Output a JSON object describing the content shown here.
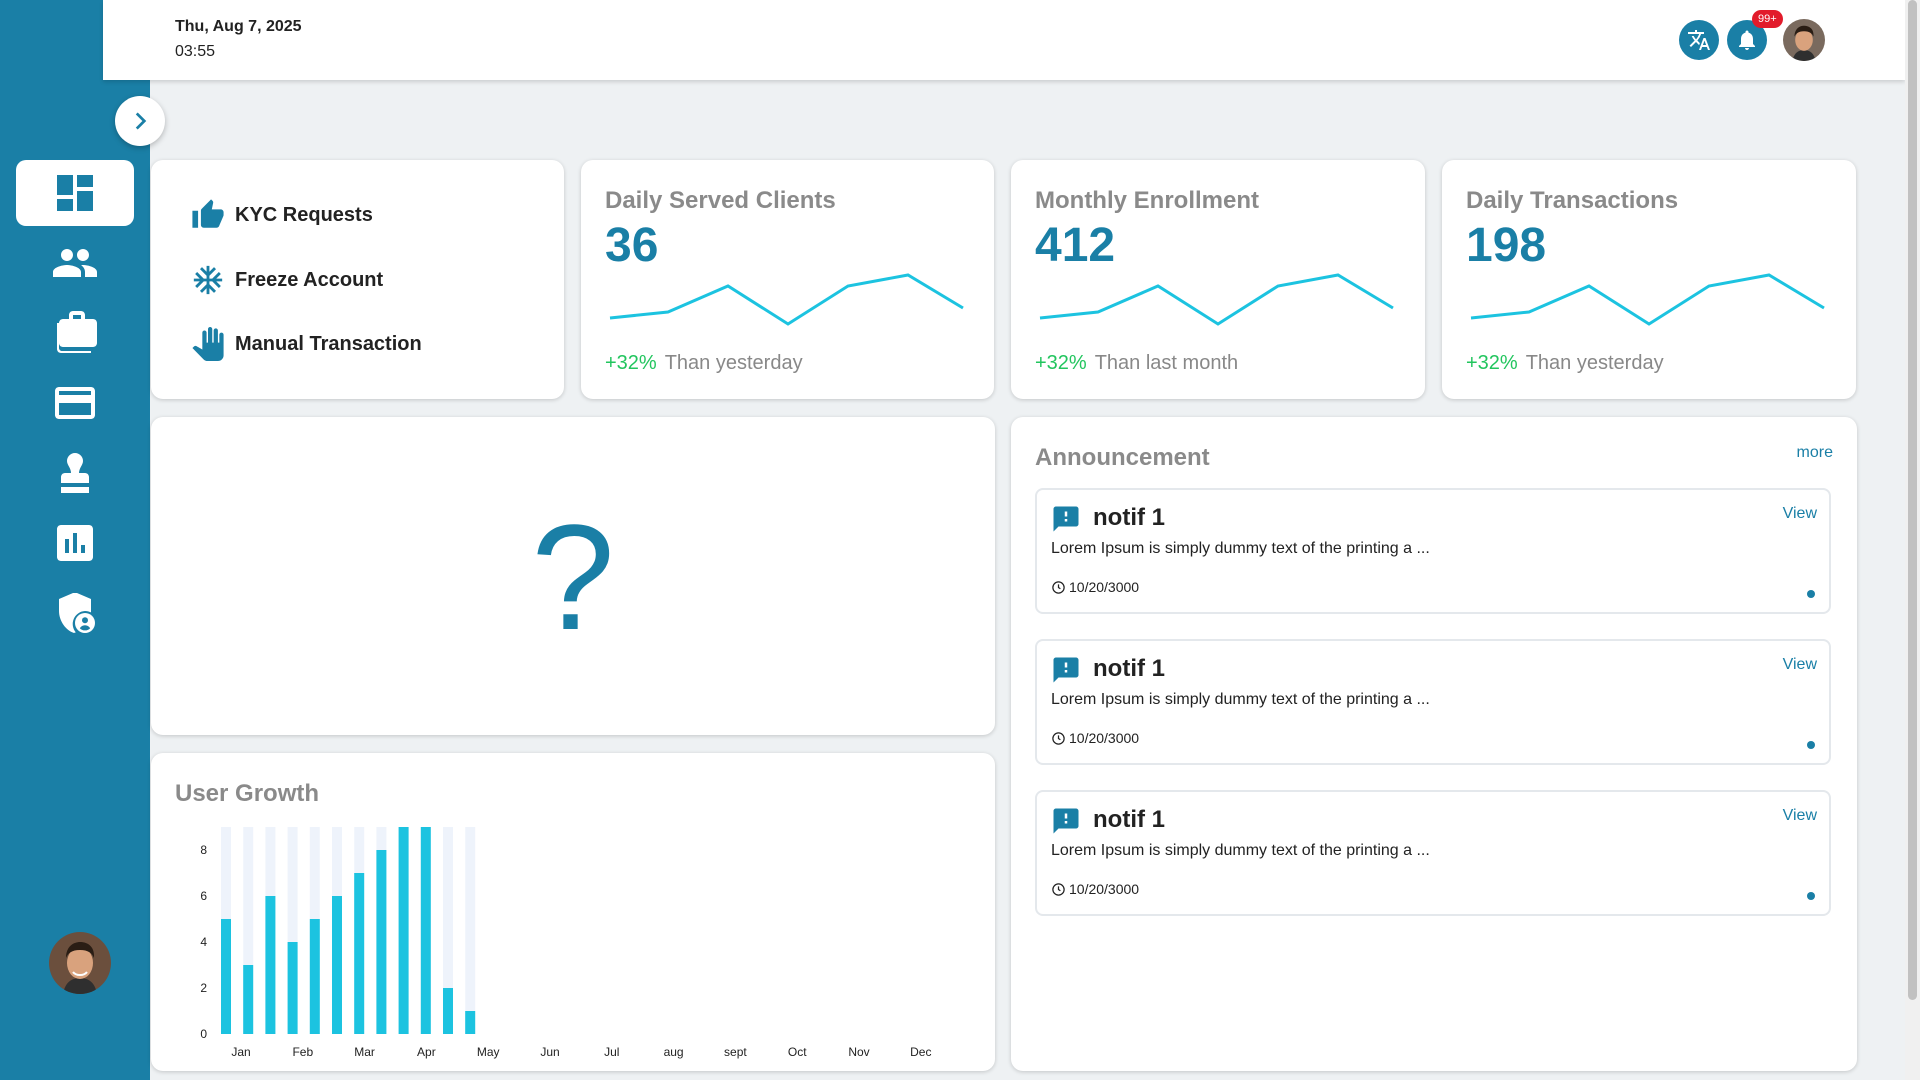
{
  "header": {
    "date": "Thu, Aug 7, 2025",
    "time": "03:55",
    "notification_badge": "99+",
    "icons": [
      "translate-icon",
      "bell-icon",
      "user-avatar"
    ]
  },
  "sidebar": {
    "items": [
      {
        "icon": "dashboard-icon",
        "active": true
      },
      {
        "icon": "users-icon",
        "active": false
      },
      {
        "icon": "briefcase-icon",
        "active": false
      },
      {
        "icon": "credit-card-icon",
        "active": false
      },
      {
        "icon": "stamp-icon",
        "active": false
      },
      {
        "icon": "bar-chart-icon",
        "active": false
      },
      {
        "icon": "admin-shield-icon",
        "active": false
      }
    ]
  },
  "quick_actions": [
    {
      "label": "KYC Requests",
      "icon": "thumbs-up-icon"
    },
    {
      "label": "Freeze Account",
      "icon": "snowflake-icon"
    },
    {
      "label": "Manual Transaction",
      "icon": "hand-icon"
    }
  ],
  "stats": [
    {
      "title": "Daily Served Clients",
      "value": "36",
      "change": "+32%",
      "caption": "Than yesterday"
    },
    {
      "title": "Monthly Enrollment",
      "value": "412",
      "change": "+32%",
      "caption": "Than last month"
    },
    {
      "title": "Daily Transactions",
      "value": "198",
      "change": "+32%",
      "caption": "Than yesterday"
    }
  ],
  "placeholder": {
    "symbol": "?"
  },
  "user_growth": {
    "title": "User Growth"
  },
  "chart_data": {
    "type": "bar",
    "title": "User Growth",
    "categories": [
      "Jan",
      "Feb",
      "Mar",
      "Apr",
      "May",
      "Jun",
      "Jul",
      "aug",
      "sept",
      "Oct",
      "Nov",
      "Dec"
    ],
    "series": [
      {
        "values": [
          5,
          3,
          6,
          4,
          5,
          6,
          7,
          8,
          9,
          9,
          2,
          1
        ]
      }
    ],
    "x_tick_labels": [
      "Jan",
      "Feb",
      "Mar",
      "Apr",
      "May",
      "Jun",
      "Jul",
      "aug",
      "sept",
      "Oct",
      "Nov",
      "Dec"
    ],
    "y_ticks": [
      0,
      2,
      4,
      6,
      8
    ],
    "ylim": [
      0,
      9
    ],
    "grid": false,
    "colors": {
      "bar": "#1cc3e0",
      "bar_bg": "#eef3fb"
    }
  },
  "announcement": {
    "title": "Announcement",
    "more_label": "more",
    "items": [
      {
        "title": "notif 1",
        "text": "Lorem Ipsum is simply dummy text of the printing a ...",
        "date": "10/20/3000",
        "view_label": "View"
      },
      {
        "title": "notif 1",
        "text": "Lorem Ipsum is simply dummy text of the printing a ...",
        "date": "10/20/3000",
        "view_label": "View"
      },
      {
        "title": "notif 1",
        "text": "Lorem Ipsum is simply dummy text of the printing a ...",
        "date": "10/20/3000",
        "view_label": "View"
      }
    ]
  },
  "colors": {
    "primary": "#1a7fa6",
    "positive": "#22c55e",
    "badge": "#e21b2b",
    "spark": "#1cc3e0"
  }
}
